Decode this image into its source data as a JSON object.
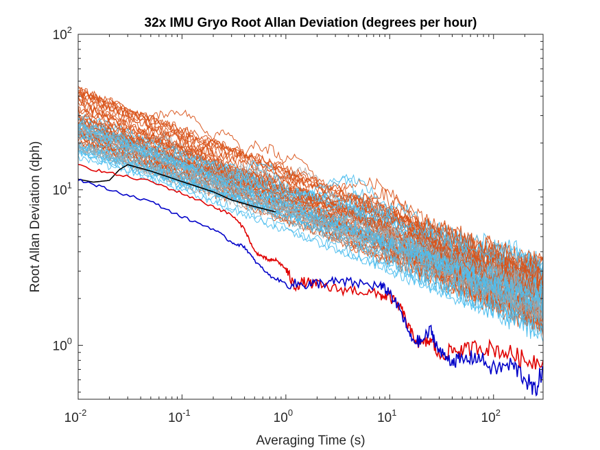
{
  "chart_data": {
    "type": "line",
    "title": "32x IMU Gryo Root Allan Deviation (degrees per hour)",
    "xlabel": "Averaging Time (s)",
    "ylabel": "Root Allan Deviation (dph)",
    "xscale": "log",
    "yscale": "log",
    "xlim": [
      0.01,
      300
    ],
    "ylim": [
      0.45,
      100
    ],
    "grid": false,
    "legend": "none",
    "x_ticks": [
      {
        "base": "10",
        "exp": "-2",
        "value": 0.01
      },
      {
        "base": "10",
        "exp": "-1",
        "value": 0.1
      },
      {
        "base": "10",
        "exp": "0",
        "value": 1
      },
      {
        "base": "10",
        "exp": "1",
        "value": 10
      },
      {
        "base": "10",
        "exp": "2",
        "value": 100
      }
    ],
    "y_ticks": [
      {
        "base": "10",
        "exp": "0",
        "value": 1
      },
      {
        "base": "10",
        "exp": "1",
        "value": 10
      },
      {
        "base": "10",
        "exp": "2",
        "value": 100
      }
    ],
    "series_colors": {
      "orange": "#D95319",
      "lightblue": "#4DBEEE",
      "gray": "#A5A5A5",
      "black": "#000000",
      "red": "#E00000",
      "blue": "#0000C8"
    },
    "groups": [
      {
        "color": "orange",
        "count": 34,
        "start_range": [
          20,
          45
        ],
        "end_range": [
          1.3,
          3.2
        ]
      },
      {
        "color": "lightblue",
        "count": 22,
        "start_range": [
          16,
          32
        ],
        "end_range": [
          1.2,
          3.5
        ]
      },
      {
        "color": "gray",
        "count": 10,
        "start_range": [
          17,
          28
        ],
        "end_range": [
          1.2,
          2.6
        ]
      }
    ],
    "series": [
      {
        "color": "black",
        "x": [
          0.01,
          0.014,
          0.02,
          0.025,
          0.03,
          0.05,
          0.1,
          0.2,
          0.3,
          0.5,
          0.8
        ],
        "y": [
          11.7,
          11.2,
          11.5,
          13.5,
          14.5,
          13.2,
          11.3,
          9.7,
          8.6,
          7.8,
          7.2
        ]
      },
      {
        "color": "red",
        "x": [
          0.01,
          0.02,
          0.05,
          0.1,
          0.2,
          0.3,
          0.4,
          0.5,
          0.6,
          0.7,
          0.8,
          1.0,
          1.2,
          1.5,
          2,
          3,
          5,
          8,
          10,
          13,
          16,
          20,
          25,
          30,
          40,
          50,
          70,
          100,
          150,
          200,
          300
        ],
        "y": [
          14.3,
          12.8,
          11.3,
          9.5,
          7.8,
          6.9,
          5.6,
          4.0,
          3.7,
          3.5,
          3.55,
          3.1,
          2.4,
          2.55,
          2.45,
          2.3,
          2.25,
          2.1,
          2.05,
          1.7,
          1.2,
          1.0,
          1.08,
          0.85,
          0.93,
          0.92,
          0.98,
          0.95,
          0.88,
          0.8,
          0.8
        ]
      },
      {
        "color": "blue",
        "x": [
          0.01,
          0.02,
          0.05,
          0.1,
          0.2,
          0.3,
          0.4,
          0.5,
          0.7,
          1.0,
          1.5,
          2,
          3,
          5,
          8,
          10,
          13,
          16,
          20,
          25,
          30,
          40,
          50,
          70,
          100,
          150,
          200,
          250,
          300
        ],
        "y": [
          11.7,
          10.0,
          8.4,
          6.7,
          5.6,
          4.6,
          4.3,
          3.5,
          2.8,
          2.5,
          2.45,
          2.5,
          2.55,
          2.5,
          2.4,
          2.2,
          1.6,
          1.1,
          1.05,
          1.25,
          0.9,
          0.8,
          0.8,
          0.85,
          0.7,
          0.75,
          0.62,
          0.5,
          0.72
        ]
      }
    ]
  }
}
